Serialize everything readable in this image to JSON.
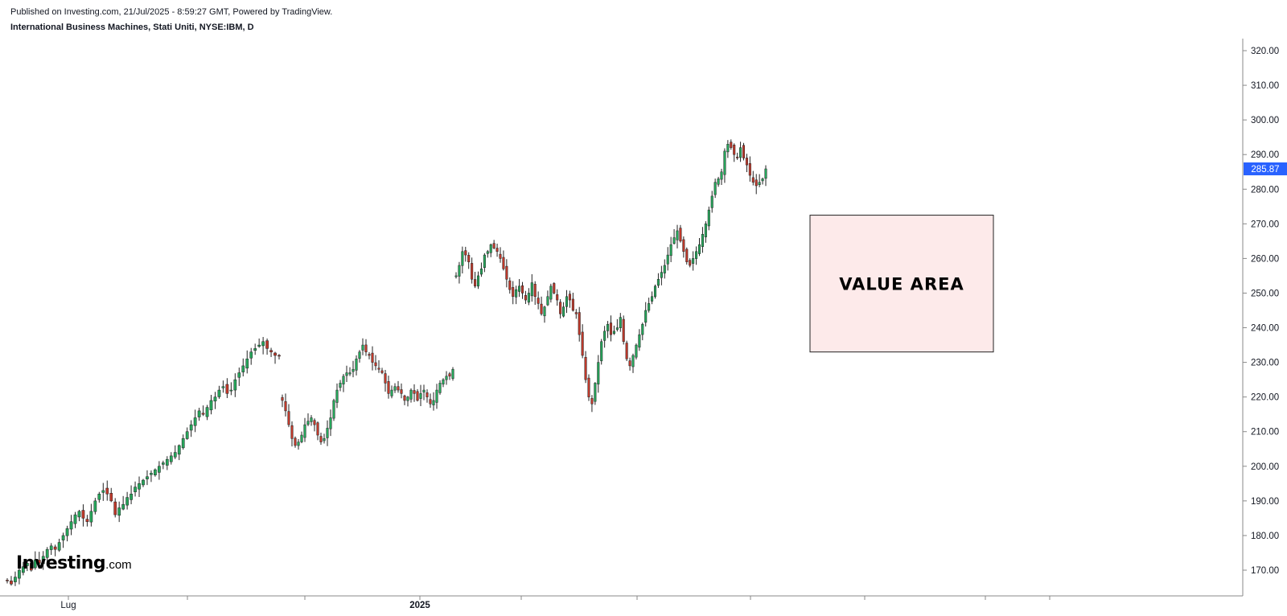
{
  "header": {
    "published": "Published on Investing.com, 21/Jul/2025 - 8:59:27 GMT, Powered by TradingView.",
    "instrument": "International Business Machines, Stati Uniti, NYSE:IBM, D"
  },
  "logo": {
    "main": "Investing",
    "suffix": ".com"
  },
  "colors": {
    "up": "#26a65b",
    "down": "#c0392b",
    "wick": "#222222",
    "price_tag": "#2962ff",
    "value_area_fill": "#fdeaea",
    "axis": "#888888"
  },
  "chart_data": {
    "type": "candlestick",
    "title": "",
    "ylim": [
      162,
      325
    ],
    "y_ticks": [
      "170.00",
      "180.00",
      "190.00",
      "200.00",
      "210.00",
      "220.00",
      "230.00",
      "240.00",
      "250.00",
      "260.00",
      "270.00",
      "280.00",
      "290.00",
      "300.00",
      "310.00",
      "320.00"
    ],
    "x_tick_labels": [
      {
        "label": "Lug",
        "bold": false
      },
      {
        "label": "2025",
        "bold": true
      }
    ],
    "last_price": "285.87",
    "annotation": {
      "text": "VALUE AREA",
      "price_low": 233,
      "price_high": 272.5
    },
    "segments": [
      {
        "name": "jun-oct-2024",
        "closes": [
          167,
          166,
          168,
          170,
          171,
          172,
          170,
          173,
          172,
          174,
          176,
          177,
          176,
          178,
          180,
          182,
          184,
          186,
          187,
          185,
          184,
          187,
          190,
          192,
          193,
          192,
          190,
          186,
          188,
          189,
          191,
          192,
          194,
          195,
          196,
          197,
          198,
          199,
          200,
          201,
          202,
          203,
          204,
          206,
          208,
          210,
          212,
          214,
          216,
          215,
          217,
          219,
          220,
          222,
          223,
          221,
          222,
          225,
          227,
          229,
          231,
          233,
          234,
          235,
          236,
          234,
          233,
          232,
          232
        ]
      },
      {
        "name": "oct-dec-2024",
        "closes": [
          219,
          216,
          212,
          208,
          206,
          207,
          209,
          212,
          213,
          214,
          212,
          209,
          207,
          208,
          211,
          214,
          219,
          222,
          224,
          226,
          227,
          227,
          228,
          231,
          233,
          235,
          233,
          232,
          230,
          229,
          228,
          227,
          224,
          221,
          222,
          223,
          222,
          221,
          219,
          220,
          222,
          221,
          219,
          221,
          222,
          220,
          218,
          219,
          222,
          224,
          225,
          226,
          226,
          228
        ]
      },
      {
        "name": "jan-jun-2025",
        "closes": [
          255,
          258,
          262,
          261,
          259,
          254,
          252,
          255,
          257,
          261,
          262,
          264,
          263,
          262,
          260,
          257,
          254,
          251,
          249,
          251,
          252,
          250,
          248,
          250,
          253,
          249,
          247,
          244,
          246,
          249,
          252,
          250,
          248,
          244,
          246,
          249,
          248,
          245,
          244,
          238,
          232,
          225,
          220,
          218,
          224,
          230,
          236,
          239,
          241,
          238,
          239,
          240,
          243,
          236,
          231,
          229,
          232,
          235,
          238,
          241,
          245,
          247,
          249,
          252,
          254,
          256,
          258,
          261,
          264,
          266,
          268,
          265,
          262,
          259,
          258,
          260,
          262,
          264,
          267,
          270,
          274,
          278,
          282,
          283,
          285,
          291,
          293,
          292,
          290,
          289,
          292,
          289,
          287,
          284,
          282,
          281,
          282,
          283,
          285.87
        ]
      }
    ]
  }
}
